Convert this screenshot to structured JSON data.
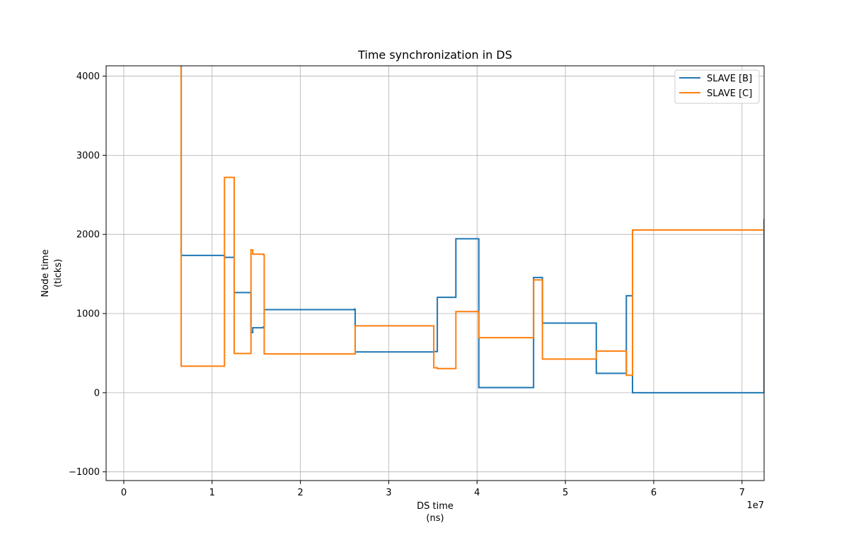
{
  "chart_data": {
    "type": "line",
    "title": "Time synchronization in DS",
    "xlabel_line1": "DS time",
    "xlabel_line2": "(ns)",
    "ylabel_line1": "Node time",
    "ylabel_line2": "(ticks)",
    "x_offset_label": "1e7",
    "x_scale": 10000000,
    "xlim": [
      -0.2,
      7.25
    ],
    "ylim": [
      -1110,
      4130
    ],
    "x_ticks": [
      0,
      1,
      2,
      3,
      4,
      5,
      6,
      7
    ],
    "x_tick_labels": [
      "0",
      "1",
      "2",
      "3",
      "4",
      "5",
      "6",
      "7"
    ],
    "y_ticks": [
      -1000,
      0,
      1000,
      2000,
      3000,
      4000
    ],
    "y_tick_labels": [
      "−1000",
      "0",
      "1000",
      "2000",
      "3000",
      "4000"
    ],
    "grid": true,
    "legend_position": "top-right",
    "series": [
      {
        "name": "SLAVE [B]",
        "color": "#1f77b4",
        "step": true,
        "x": [
          0.64,
          0.65,
          1.14,
          1.25,
          1.44,
          1.46,
          1.58,
          1.59,
          2.61,
          2.62,
          3.51,
          3.55,
          3.76,
          4.02,
          4.64,
          4.74,
          5.35,
          5.69,
          5.76,
          7.25
        ],
        "y": [
          5200,
          1735,
          1710,
          1265,
          760,
          820,
          830,
          1050,
          1055,
          515,
          520,
          1205,
          1945,
          65,
          1455,
          880,
          245,
          1225,
          0,
          2195
        ]
      },
      {
        "name": "SLAVE [C]",
        "color": "#ff7f0e",
        "step": true,
        "x": [
          0.64,
          0.65,
          1.14,
          1.25,
          1.44,
          1.46,
          1.58,
          1.59,
          2.61,
          2.62,
          3.51,
          3.55,
          3.76,
          4.02,
          4.64,
          4.74,
          5.35,
          5.69,
          5.76,
          7.25
        ],
        "y": [
          5200,
          335,
          2720,
          495,
          1805,
          1750,
          1745,
          490,
          490,
          845,
          315,
          305,
          1025,
          695,
          1425,
          425,
          525,
          220,
          2055,
          2055
        ]
      }
    ]
  }
}
